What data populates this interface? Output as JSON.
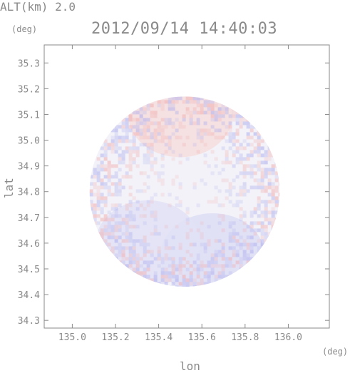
{
  "header": {
    "altitude_text": "ALT(km) 2.0",
    "timestamp": "2012/09/14 14:40:03"
  },
  "axes": {
    "ylabel": "lat",
    "xlabel": "lon",
    "y_unit": "(deg)",
    "x_unit": "(deg)"
  },
  "chart_data": {
    "type": "heatmap",
    "title": "2012/09/14 14:40:03",
    "subtitle": "ALT(km) 2.0",
    "xlabel": "lon",
    "ylabel": "lat",
    "xlim": [
      134.87,
      136.19
    ],
    "ylim": [
      34.27,
      35.37
    ],
    "xticks": [
      135.0,
      135.2,
      135.4,
      135.6,
      135.8,
      136.0
    ],
    "xtick_labels": [
      "135.0",
      "135.2",
      "135.4",
      "135.6",
      "135.8",
      "136.0"
    ],
    "yticks": [
      34.3,
      34.4,
      34.5,
      34.6,
      34.7,
      34.8,
      34.9,
      35.0,
      35.1,
      35.2,
      35.3
    ],
    "ytick_labels": [
      "34.3",
      "34.4",
      "34.5",
      "34.6",
      "34.7",
      "34.8",
      "34.9",
      "35.0",
      "35.1",
      "35.2",
      "35.3"
    ],
    "domain": {
      "shape": "circle",
      "center_lon": 135.52,
      "center_lat": 34.8,
      "radius_deg": 0.44
    },
    "regions": [
      {
        "description": "north sector",
        "value": "weak positive",
        "color": "#f6dede",
        "lon": 135.5,
        "lat": 35.1
      },
      {
        "description": "south-east sector",
        "value": "weak negative",
        "color": "#dedef6",
        "lon": 135.65,
        "lat": 34.55
      },
      {
        "description": "south-west sector",
        "value": "weak negative",
        "color": "#e2e2f6",
        "lon": 135.35,
        "lat": 34.6
      }
    ],
    "colors": {
      "positive": "#f2a8a8",
      "negative": "#a8a8ee",
      "neutral": "#f2f2f8"
    },
    "grid": false
  }
}
